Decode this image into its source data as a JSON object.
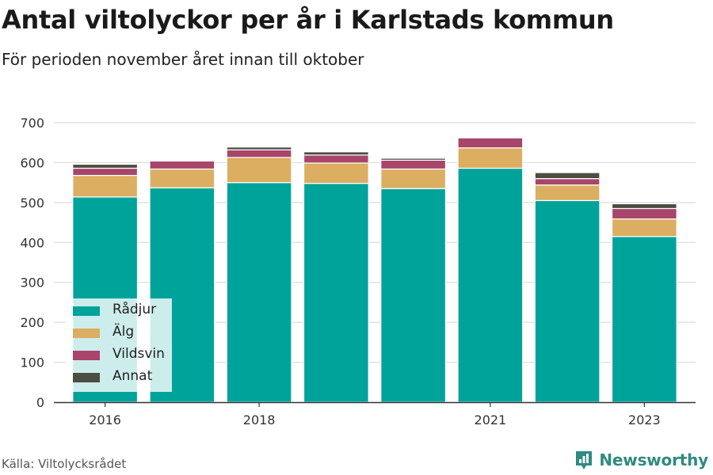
{
  "title": "Antal viltolyckor per år i Karlstads kommun",
  "subtitle": "För perioden november året innan till oktober",
  "source": "Källa: Viltolycksrådet",
  "brand": "Newsworthy",
  "colors": {
    "radjur": "#00a39a",
    "alg": "#dcae62",
    "vildsvin": "#a8456a",
    "annat": "#4d4d42",
    "brand": "#2e8b80"
  },
  "chart_data": {
    "type": "bar",
    "stacked": true,
    "x": [
      2016,
      2017,
      2018,
      2019,
      2020,
      2021,
      2022,
      2023
    ],
    "x_tick_labels": [
      "2016",
      "2018",
      "2021",
      "2023"
    ],
    "series": [
      {
        "name": "Rådjur",
        "values": [
          514,
          537,
          550,
          548,
          535,
          586,
          505,
          415
        ]
      },
      {
        "name": "Älg",
        "values": [
          54,
          47,
          63,
          51,
          49,
          51,
          39,
          44
        ]
      },
      {
        "name": "Vildsvin",
        "values": [
          18,
          20,
          19,
          20,
          22,
          25,
          16,
          26
        ]
      },
      {
        "name": "Annat",
        "values": [
          10,
          0,
          7,
          8,
          5,
          0,
          15,
          12
        ]
      }
    ],
    "ylim": [
      0,
      700
    ],
    "y_ticks": [
      0,
      100,
      200,
      300,
      400,
      500,
      600,
      700
    ],
    "grid": true,
    "legend_position": "bottom-left"
  }
}
